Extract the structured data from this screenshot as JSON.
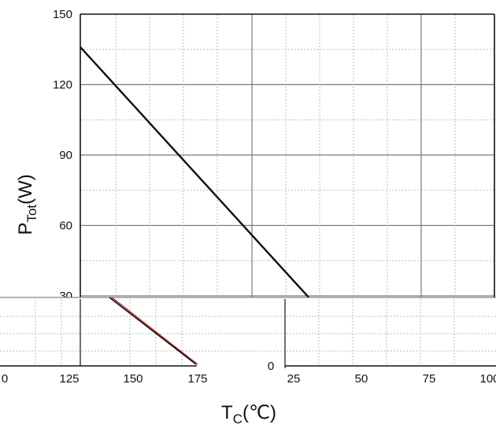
{
  "chart_data": {
    "type": "line",
    "title": "",
    "ylabel_main": "P",
    "ylabel_sub": "Tot",
    "ylabel_unit": "(W)",
    "xlabel_main": "T",
    "xlabel_sub": "C",
    "xlabel_unit": "(℃)",
    "ylim": [
      0,
      150
    ],
    "yticks": [
      "150",
      "120",
      "90",
      "60",
      "30",
      "0"
    ],
    "xticks": [
      "0",
      "25",
      "50",
      "75",
      "100",
      "125",
      "150",
      "175"
    ],
    "grid": true,
    "series": [
      {
        "x": [
          25,
          175
        ],
        "y": [
          136,
          0
        ]
      }
    ],
    "inset_xticks": [
      "0",
      "125",
      "150",
      "175"
    ],
    "inset_xticks_right": [
      "25",
      "50",
      "75",
      "100"
    ]
  },
  "colors": {
    "line": "#111111",
    "axis": "#111111",
    "grid_major": "#7a7a7a",
    "grid_minor": "#bdbdbd"
  }
}
